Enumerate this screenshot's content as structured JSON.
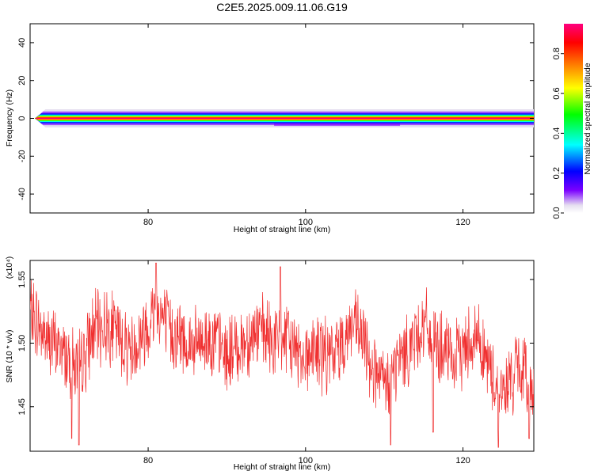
{
  "title": "C2E5.2025.009.11.06.G19",
  "colorbar": {
    "label": "Normalized spectral amplitude",
    "ticks": [
      "0.0",
      "0.2",
      "0.4",
      "0.6",
      "0.8"
    ],
    "tick_values": [
      0.0,
      0.2,
      0.4,
      0.6,
      0.8
    ],
    "range": [
      0.0,
      0.95
    ],
    "colormap": [
      "#e6e0f0",
      "#7b00ff",
      "#0000ff",
      "#00ffff",
      "#00ff00",
      "#ffff00",
      "#ff8000",
      "#ff0000",
      "#ff007f"
    ]
  },
  "chart_data": [
    {
      "type": "heatmap",
      "xlabel": "Height of straight line (km)",
      "ylabel": "Frequency (Hz)",
      "xlim": [
        65,
        129
      ],
      "ylim": [
        -50,
        50
      ],
      "xticks": [
        "80",
        "100",
        "120"
      ],
      "xtick_values": [
        80,
        100,
        120
      ],
      "yticks": [
        "40",
        "20",
        "0",
        "-20",
        "-40"
      ],
      "ytick_values": [
        40,
        20,
        0,
        -20,
        -40
      ],
      "spectral_peak_frequency_hz": 0,
      "spectral_band_halfwidth_hz": 2
    },
    {
      "type": "line",
      "xlabel": "Height of straight line (km)",
      "ylabel": "SNR (10 * v/v)",
      "y_multiplier": "(x10⁴)",
      "xlim": [
        65,
        129
      ],
      "ylim": [
        1.415,
        1.565
      ],
      "xticks": [
        "80",
        "100",
        "120"
      ],
      "xtick_values": [
        80,
        100,
        120
      ],
      "yticks": [
        "1.55",
        "1.50",
        "1.45"
      ],
      "ytick_values": [
        1.55,
        1.5,
        1.45
      ],
      "line_color": "#f03030",
      "x": [
        65,
        66,
        67,
        68,
        69,
        70,
        71,
        72,
        73,
        74,
        75,
        76,
        77,
        78,
        79,
        80,
        81,
        82,
        83,
        84,
        85,
        86,
        87,
        88,
        89,
        90,
        91,
        92,
        93,
        94,
        95,
        96,
        97,
        98,
        99,
        100,
        101,
        102,
        103,
        104,
        105,
        106,
        107,
        108,
        109,
        110,
        111,
        112,
        113,
        114,
        115,
        116,
        117,
        118,
        119,
        120,
        121,
        122,
        123,
        124,
        125,
        126,
        127,
        128,
        129
      ],
      "y": [
        1.525,
        1.515,
        1.505,
        1.498,
        1.495,
        1.488,
        1.48,
        1.49,
        1.51,
        1.512,
        1.515,
        1.508,
        1.5,
        1.495,
        1.505,
        1.515,
        1.53,
        1.518,
        1.508,
        1.505,
        1.5,
        1.498,
        1.502,
        1.505,
        1.498,
        1.49,
        1.495,
        1.5,
        1.505,
        1.51,
        1.505,
        1.5,
        1.505,
        1.498,
        1.495,
        1.49,
        1.495,
        1.492,
        1.488,
        1.495,
        1.505,
        1.515,
        1.505,
        1.49,
        1.475,
        1.465,
        1.475,
        1.488,
        1.495,
        1.505,
        1.515,
        1.505,
        1.495,
        1.49,
        1.485,
        1.495,
        1.505,
        1.505,
        1.485,
        1.47,
        1.46,
        1.47,
        1.48,
        1.475,
        1.465
      ],
      "spikes": [
        {
          "x": 70.3,
          "y": 1.425
        },
        {
          "x": 71.2,
          "y": 1.42
        },
        {
          "x": 81.0,
          "y": 1.563
        },
        {
          "x": 96.8,
          "y": 1.56
        },
        {
          "x": 110.8,
          "y": 1.42
        },
        {
          "x": 116.2,
          "y": 1.43
        },
        {
          "x": 124.5,
          "y": 1.418
        },
        {
          "x": 128.4,
          "y": 1.425
        }
      ]
    }
  ]
}
